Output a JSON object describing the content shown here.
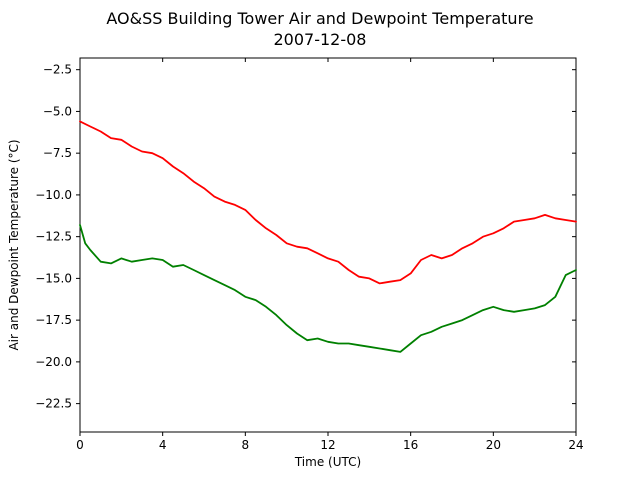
{
  "chart_data": {
    "type": "line",
    "title": "AO&SS Building Tower Air and Dewpoint Temperature",
    "subtitle": "2007-12-08",
    "xlabel": "Time (UTC)",
    "ylabel": "Air and Dewpoint Temperature (°C)",
    "xlim": [
      0,
      24
    ],
    "ylim": [
      -24.2,
      -1.8
    ],
    "xticks": [
      0,
      4,
      8,
      12,
      16,
      20,
      24
    ],
    "xtick_labels": [
      "0",
      "4",
      "8",
      "12",
      "16",
      "20",
      "24"
    ],
    "yticks": [
      -22.5,
      -20.0,
      -17.5,
      -15.0,
      -12.5,
      -10.0,
      -7.5,
      -5.0,
      -2.5
    ],
    "ytick_labels": [
      "−22.5",
      "−20.0",
      "−17.5",
      "−15.0",
      "−12.5",
      "−10.0",
      "−7.5",
      "−5.0",
      "−2.5"
    ],
    "grid": false,
    "legend": "none",
    "series": [
      {
        "color": "#ff0000",
        "x": [
          0,
          0.5,
          1,
          1.5,
          2,
          2.5,
          3,
          3.5,
          4,
          4.5,
          5,
          5.5,
          6,
          6.5,
          7,
          7.5,
          8,
          8.5,
          9,
          9.5,
          10,
          10.5,
          11,
          11.5,
          12,
          12.5,
          13,
          13.5,
          14,
          14.5,
          15,
          15.5,
          16,
          16.5,
          17,
          17.5,
          18,
          18.5,
          19,
          19.5,
          20,
          20.5,
          21,
          21.5,
          22,
          22.5,
          23,
          23.5,
          24
        ],
        "y": [
          -5.6,
          -5.9,
          -6.2,
          -6.6,
          -6.7,
          -7.1,
          -7.4,
          -7.5,
          -7.8,
          -8.3,
          -8.7,
          -9.2,
          -9.6,
          -10.1,
          -10.4,
          -10.6,
          -10.9,
          -11.5,
          -12.0,
          -12.4,
          -12.9,
          -13.1,
          -13.2,
          -13.5,
          -13.8,
          -14.0,
          -14.5,
          -14.9,
          -15.0,
          -15.3,
          -15.2,
          -15.1,
          -14.7,
          -13.9,
          -13.6,
          -13.8,
          -13.6,
          -13.2,
          -12.9,
          -12.5,
          -12.3,
          -12.0,
          -11.6,
          -11.5,
          -11.4,
          -11.2,
          -11.4,
          -11.5,
          -11.6
        ]
      },
      {
        "color": "#008000",
        "x": [
          0,
          0.25,
          0.5,
          1,
          1.5,
          2,
          2.5,
          3,
          3.5,
          4,
          4.5,
          5,
          5.5,
          6,
          6.5,
          7,
          7.5,
          8,
          8.5,
          9,
          9.5,
          10,
          10.5,
          11,
          11.5,
          12,
          12.5,
          13,
          13.5,
          14,
          14.5,
          15,
          15.5,
          16,
          16.5,
          17,
          17.5,
          18,
          18.5,
          19,
          19.5,
          20,
          20.5,
          21,
          21.5,
          22,
          22.5,
          23,
          23.5,
          24
        ],
        "y": [
          -11.8,
          -12.9,
          -13.3,
          -14.0,
          -14.1,
          -13.8,
          -14.0,
          -13.9,
          -13.8,
          -13.9,
          -14.3,
          -14.2,
          -14.5,
          -14.8,
          -15.1,
          -15.4,
          -15.7,
          -16.1,
          -16.3,
          -16.7,
          -17.2,
          -17.8,
          -18.3,
          -18.7,
          -18.6,
          -18.8,
          -18.9,
          -18.9,
          -19.0,
          -19.1,
          -19.2,
          -19.3,
          -19.4,
          -18.9,
          -18.4,
          -18.2,
          -17.9,
          -17.7,
          -17.5,
          -17.2,
          -16.9,
          -16.7,
          -16.9,
          -17.0,
          -16.9,
          -16.8,
          -16.6,
          -16.1,
          -14.8,
          -14.5
        ]
      }
    ]
  }
}
